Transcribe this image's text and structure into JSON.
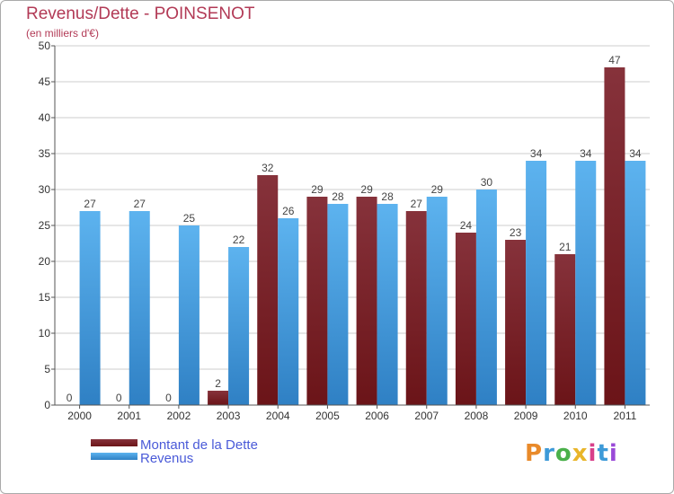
{
  "chart_data": {
    "type": "bar",
    "title": "Revenus/Dette - POINSENOT",
    "subtitle": "(en milliers d'€)",
    "xlabel": "",
    "ylabel": "",
    "ylim": [
      0,
      50
    ],
    "yticks": [
      0,
      5,
      10,
      15,
      20,
      25,
      30,
      35,
      40,
      45,
      50
    ],
    "grid": true,
    "categories": [
      "2000",
      "2001",
      "2002",
      "2003",
      "2004",
      "2005",
      "2006",
      "2007",
      "2008",
      "2009",
      "2010",
      "2011"
    ],
    "series": [
      {
        "name": "Montant de la Dette",
        "color": "#6b1418",
        "values": [
          0,
          0,
          0,
          2,
          32,
          29,
          29,
          27,
          24,
          23,
          21,
          47
        ]
      },
      {
        "name": "Revenus",
        "color": "#4ea6e6",
        "values": [
          27,
          27,
          25,
          22,
          26,
          28,
          28,
          29,
          30,
          34,
          34,
          34
        ]
      }
    ],
    "legend": {
      "position": "bottom-left"
    }
  },
  "colors": {
    "title": "#b23a56",
    "legend_text": "#4a5ad8",
    "grid": "#cccccc",
    "axis": "#555555"
  },
  "logo": {
    "letters": [
      "P",
      "r",
      "o",
      "x",
      "i",
      "t",
      "i"
    ],
    "colors": [
      "#e98a2a",
      "#3d9ad8",
      "#4ab04a",
      "#e9b52a",
      "#d8408a",
      "#3d9ad8",
      "#9a4ad8"
    ]
  }
}
